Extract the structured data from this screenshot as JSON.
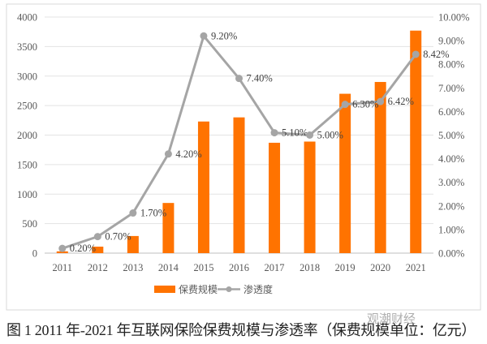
{
  "chart_data": {
    "type": "bar+line",
    "categories": [
      "2011",
      "2012",
      "2013",
      "2014",
      "2015",
      "2016",
      "2017",
      "2018",
      "2019",
      "2020",
      "2021"
    ],
    "series": [
      {
        "name": "保费规模",
        "type": "bar",
        "axis": "left",
        "color": "#FF7300",
        "values": [
          30,
          110,
          290,
          850,
          2230,
          2300,
          1870,
          1890,
          2700,
          2900,
          3770
        ]
      },
      {
        "name": "渗透度",
        "type": "line",
        "axis": "right",
        "color": "#A5A5A5",
        "values": [
          0.2,
          0.7,
          1.7,
          4.2,
          9.2,
          7.4,
          5.1,
          5.0,
          6.3,
          6.42,
          8.42
        ],
        "data_labels": [
          "0.20%",
          "0.70%",
          "1.70%",
          "4.20%",
          "9.20%",
          "7.40%",
          "5.10%",
          "5.00%",
          "6.30%",
          "6.42%",
          "8.42%"
        ]
      }
    ],
    "left_axis": {
      "ylim": [
        0,
        4000
      ],
      "ticks": [
        "0",
        "500",
        "1000",
        "1500",
        "2000",
        "2500",
        "3000",
        "3500",
        "4000"
      ]
    },
    "right_axis": {
      "ylim": [
        0,
        10
      ],
      "ticks": [
        "0.00%",
        "1.00%",
        "2.00%",
        "3.00%",
        "4.00%",
        "5.00%",
        "6.00%",
        "7.00%",
        "8.00%",
        "9.00%",
        "10.00%"
      ]
    },
    "grid": true,
    "legend_position": "bottom"
  },
  "caption": "图 1 2011 年-2021 年互联网保险保费规模与渗透率（保费规模单位：亿元）",
  "watermark": "观潮财经"
}
